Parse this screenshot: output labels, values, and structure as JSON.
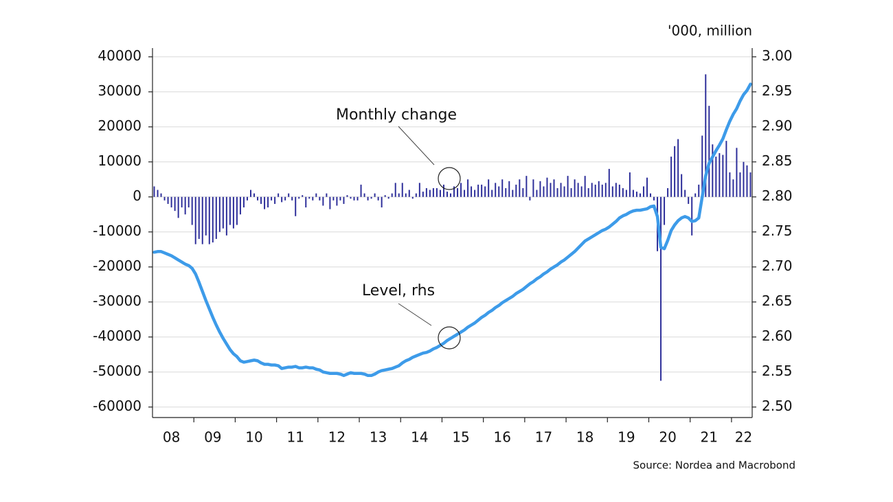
{
  "chart_data": {
    "type": "bar",
    "unit_label": "'000, million",
    "source": "Source: Nordea and Macrobond",
    "categories": [
      null,
      null,
      null,
      null,
      null,
      "08",
      null,
      null,
      null,
      null,
      null,
      null,
      null,
      null,
      null,
      null,
      null,
      "09",
      null,
      null,
      null,
      null,
      null,
      null,
      null,
      null,
      null,
      null,
      null,
      "10",
      null,
      null,
      null,
      null,
      null,
      null,
      null,
      null,
      null,
      null,
      null,
      "11",
      null,
      null,
      null,
      null,
      null,
      null,
      null,
      null,
      null,
      null,
      null,
      "12",
      null,
      null,
      null,
      null,
      null,
      null,
      null,
      null,
      null,
      null,
      null,
      "13",
      null,
      null,
      null,
      null,
      null,
      null,
      null,
      null,
      null,
      null,
      null,
      "14",
      null,
      null,
      null,
      null,
      null,
      null,
      null,
      null,
      null,
      null,
      null,
      "15",
      null,
      null,
      null,
      null,
      null,
      null,
      null,
      null,
      null,
      null,
      null,
      "16",
      null,
      null,
      null,
      null,
      null,
      null,
      null,
      null,
      null,
      null,
      null,
      "17",
      null,
      null,
      null,
      null,
      null,
      null,
      null,
      null,
      null,
      null,
      null,
      "18",
      null,
      null,
      null,
      null,
      null,
      null,
      null,
      null,
      null,
      null,
      null,
      "19",
      null,
      null,
      null,
      null,
      null,
      null,
      null,
      null,
      null,
      null,
      null,
      "20",
      null,
      null,
      null,
      null,
      null,
      null,
      null,
      null,
      null,
      null,
      null,
      "21",
      null,
      null,
      null,
      null,
      null,
      null,
      null,
      null,
      null,
      "22",
      null,
      null
    ],
    "series": [
      {
        "name": "Monthly change",
        "type": "bar",
        "color": "#2e2f9a",
        "values": [
          3000,
          2000,
          1000,
          -1000,
          -2000,
          -3000,
          -4000,
          -6000,
          -3000,
          -5000,
          -3000,
          -8000,
          -13500,
          -12000,
          -13500,
          -11000,
          -13500,
          -13000,
          -12000,
          -10000,
          -9000,
          -11000,
          -8000,
          -9000,
          -8000,
          -5000,
          -3000,
          -1000,
          2000,
          1000,
          -1000,
          -2000,
          -3500,
          -3000,
          -1000,
          -2000,
          1000,
          -1500,
          -1000,
          1000,
          -1000,
          -5500,
          -500,
          500,
          -3000,
          -500,
          -1000,
          1000,
          -1000,
          -2500,
          1000,
          -3500,
          -1000,
          -2500,
          -1000,
          -2000,
          500,
          -500,
          -1000,
          -1000,
          3500,
          1000,
          -1000,
          -500,
          1000,
          -1000,
          -3000,
          500,
          -500,
          1000,
          4000,
          1000,
          4000,
          1000,
          2000,
          -500,
          1000,
          4000,
          1500,
          2500,
          2000,
          2500,
          2500,
          2000,
          3500,
          1500,
          1000,
          3000,
          2500,
          4000,
          2000,
          5000,
          3000,
          2000,
          3500,
          3500,
          3000,
          5000,
          2000,
          4000,
          3000,
          5000,
          2500,
          4500,
          2000,
          3500,
          5000,
          2500,
          6000,
          -1000,
          5000,
          2000,
          4500,
          3000,
          5500,
          4000,
          5000,
          2500,
          4000,
          3000,
          6000,
          2500,
          5000,
          4000,
          3000,
          6000,
          2500,
          4000,
          3500,
          4500,
          3500,
          4000,
          8000,
          3000,
          4000,
          3500,
          2500,
          2000,
          7000,
          2000,
          1500,
          1000,
          3000,
          5500,
          1000,
          -1000,
          -15500,
          -52500,
          -8000,
          2500,
          11500,
          14500,
          16500,
          6500,
          2000,
          -2000,
          -11000,
          1000,
          3500,
          17500,
          35000,
          26000,
          15000,
          11500,
          12500,
          12000,
          16000,
          7000,
          5000,
          14000,
          7000,
          10000,
          9000,
          7000
        ]
      },
      {
        "name": "Level, rhs",
        "type": "line",
        "axis": "y2",
        "color": "#3d9be9",
        "values": [
          2.721,
          2.722,
          2.722,
          2.72,
          2.718,
          2.716,
          2.713,
          2.71,
          2.707,
          2.704,
          2.702,
          2.698,
          2.69,
          2.678,
          2.665,
          2.652,
          2.64,
          2.628,
          2.617,
          2.607,
          2.598,
          2.59,
          2.582,
          2.576,
          2.572,
          2.566,
          2.564,
          2.565,
          2.566,
          2.567,
          2.566,
          2.563,
          2.561,
          2.561,
          2.56,
          2.56,
          2.559,
          2.555,
          2.556,
          2.557,
          2.557,
          2.558,
          2.556,
          2.556,
          2.557,
          2.556,
          2.556,
          2.554,
          2.553,
          2.55,
          2.549,
          2.548,
          2.548,
          2.548,
          2.547,
          2.545,
          2.547,
          2.549,
          2.548,
          2.548,
          2.548,
          2.547,
          2.545,
          2.545,
          2.547,
          2.55,
          2.552,
          2.553,
          2.554,
          2.555,
          2.557,
          2.559,
          2.563,
          2.566,
          2.568,
          2.571,
          2.573,
          2.575,
          2.577,
          2.578,
          2.58,
          2.583,
          2.585,
          2.588,
          2.591,
          2.595,
          2.598,
          2.601,
          2.604,
          2.607,
          2.61,
          2.614,
          2.617,
          2.62,
          2.624,
          2.628,
          2.631,
          2.635,
          2.638,
          2.642,
          2.645,
          2.649,
          2.652,
          2.655,
          2.658,
          2.662,
          2.665,
          2.668,
          2.672,
          2.676,
          2.679,
          2.683,
          2.686,
          2.69,
          2.693,
          2.697,
          2.7,
          2.703,
          2.707,
          2.71,
          2.714,
          2.718,
          2.722,
          2.727,
          2.732,
          2.737,
          2.74,
          2.743,
          2.746,
          2.749,
          2.752,
          2.754,
          2.757,
          2.761,
          2.765,
          2.77,
          2.773,
          2.775,
          2.778,
          2.78,
          2.781,
          2.781,
          2.782,
          2.783,
          2.786,
          2.787,
          2.772,
          2.728,
          2.726,
          2.738,
          2.752,
          2.76,
          2.766,
          2.77,
          2.772,
          2.77,
          2.765,
          2.766,
          2.77,
          2.8,
          2.83,
          2.848,
          2.857,
          2.866,
          2.874,
          2.883,
          2.896,
          2.908,
          2.918,
          2.926,
          2.937,
          2.946,
          2.952,
          2.961
        ]
      }
    ],
    "ylim": [
      -63000,
      42500
    ],
    "yticks": [
      -60000,
      -50000,
      -40000,
      -30000,
      -20000,
      -10000,
      0,
      10000,
      20000,
      30000,
      40000
    ],
    "y2lim": [
      2.485,
      3.0125
    ],
    "y2ticks": [
      {
        "value": 2.5,
        "label": "2.50"
      },
      2.55,
      {
        "value": 2.6,
        "label": "2.60"
      },
      2.65,
      {
        "value": 2.7,
        "label": "2.70"
      },
      2.75,
      {
        "value": 2.8,
        "label": "2.80"
      },
      2.85,
      {
        "value": 2.9,
        "label": "2.90"
      },
      2.95,
      {
        "value": 3.0,
        "label": "3.00"
      }
    ],
    "grid": true
  }
}
